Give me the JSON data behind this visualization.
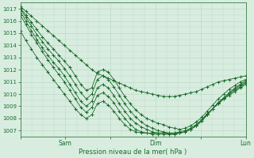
{
  "xlabel": "Pression niveau de la mer( hPa )",
  "ylim": [
    1006.5,
    1017.5
  ],
  "yticks": [
    1007,
    1008,
    1009,
    1010,
    1011,
    1012,
    1013,
    1014,
    1015,
    1016,
    1017
  ],
  "xtick_labels": [
    "",
    "Sam",
    "",
    "Dim",
    "",
    "Lun"
  ],
  "xtick_positions": [
    0,
    24,
    48,
    72,
    96,
    120
  ],
  "bg_color": "#d8ede0",
  "grid_color": "#b8d4be",
  "line_color": "#1a6b2a",
  "series": [
    [
      1017.2,
      1016.8,
      1016.4,
      1016.0,
      1015.6,
      1015.2,
      1014.8,
      1014.4,
      1014.0,
      1013.6,
      1013.2,
      1012.8,
      1012.4,
      1012.0,
      1011.7,
      1011.5,
      1011.3,
      1011.1,
      1010.9,
      1010.7,
      1010.5,
      1010.3,
      1010.2,
      1010.1,
      1010.0,
      1009.9,
      1009.8,
      1009.8,
      1009.8,
      1009.9,
      1010.0,
      1010.1,
      1010.2,
      1010.4,
      1010.6,
      1010.8,
      1011.0,
      1011.1,
      1011.2,
      1011.3,
      1011.4,
      1011.5
    ],
    [
      1017.1,
      1016.5,
      1015.9,
      1015.3,
      1014.7,
      1014.2,
      1013.7,
      1013.2,
      1012.7,
      1012.2,
      1011.5,
      1010.8,
      1010.3,
      1010.5,
      1011.8,
      1012.0,
      1011.8,
      1011.2,
      1010.5,
      1009.8,
      1009.2,
      1008.7,
      1008.3,
      1008.0,
      1007.8,
      1007.6,
      1007.5,
      1007.3,
      1007.2,
      1007.1,
      1007.2,
      1007.4,
      1007.7,
      1008.1,
      1008.6,
      1009.1,
      1009.6,
      1010.0,
      1010.4,
      1010.7,
      1011.0,
      1011.2
    ],
    [
      1017.0,
      1016.3,
      1015.6,
      1014.9,
      1014.3,
      1013.7,
      1013.2,
      1012.7,
      1012.1,
      1011.5,
      1010.8,
      1010.1,
      1009.6,
      1010.0,
      1011.2,
      1011.5,
      1011.2,
      1010.6,
      1009.9,
      1009.2,
      1008.6,
      1008.1,
      1007.7,
      1007.4,
      1007.2,
      1007.0,
      1006.9,
      1006.8,
      1006.8,
      1006.8,
      1006.9,
      1007.1,
      1007.4,
      1007.8,
      1008.3,
      1008.8,
      1009.3,
      1009.7,
      1010.1,
      1010.5,
      1010.8,
      1011.1
    ],
    [
      1016.8,
      1016.0,
      1015.2,
      1014.5,
      1013.8,
      1013.2,
      1012.6,
      1012.1,
      1011.5,
      1010.8,
      1010.1,
      1009.4,
      1009.0,
      1009.4,
      1010.5,
      1010.8,
      1010.5,
      1009.9,
      1009.2,
      1008.6,
      1008.0,
      1007.6,
      1007.3,
      1007.1,
      1006.9,
      1006.8,
      1006.8,
      1006.7,
      1006.7,
      1006.8,
      1006.9,
      1007.1,
      1007.4,
      1007.8,
      1008.3,
      1008.8,
      1009.3,
      1009.7,
      1010.1,
      1010.4,
      1010.7,
      1011.0
    ],
    [
      1016.5,
      1015.7,
      1014.9,
      1014.2,
      1013.5,
      1012.8,
      1012.2,
      1011.6,
      1011.0,
      1010.3,
      1009.6,
      1008.9,
      1008.5,
      1008.9,
      1009.9,
      1010.1,
      1009.8,
      1009.3,
      1008.6,
      1008.0,
      1007.5,
      1007.1,
      1006.9,
      1006.8,
      1006.7,
      1006.7,
      1006.7,
      1006.7,
      1006.7,
      1006.8,
      1006.9,
      1007.1,
      1007.4,
      1007.8,
      1008.3,
      1008.8,
      1009.2,
      1009.6,
      1010.0,
      1010.3,
      1010.6,
      1010.9
    ],
    [
      1015.2,
      1014.4,
      1013.7,
      1013.0,
      1012.4,
      1011.8,
      1011.2,
      1010.6,
      1010.0,
      1009.4,
      1008.8,
      1008.3,
      1008.0,
      1008.3,
      1009.2,
      1009.4,
      1009.1,
      1008.6,
      1008.0,
      1007.5,
      1007.1,
      1006.9,
      1006.8,
      1006.8,
      1006.8,
      1006.8,
      1006.8,
      1006.8,
      1006.8,
      1006.9,
      1007.0,
      1007.2,
      1007.5,
      1007.9,
      1008.4,
      1008.8,
      1009.2,
      1009.6,
      1009.9,
      1010.2,
      1010.5,
      1010.8
    ]
  ]
}
